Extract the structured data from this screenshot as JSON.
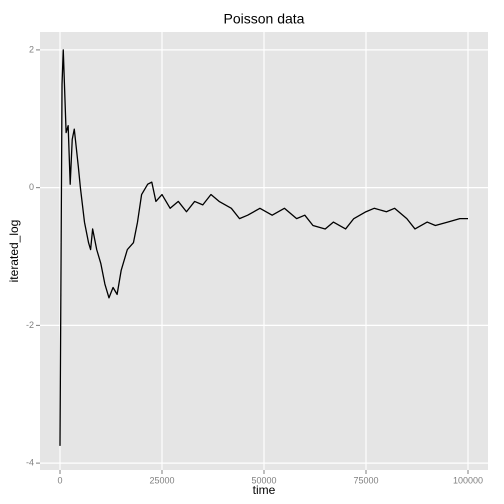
{
  "chart_data": {
    "type": "line",
    "title": "Poisson data",
    "x_label": "time",
    "y_label": "iterated_log",
    "series": [
      {
        "name": "iterated_log",
        "color": "#000000",
        "x": [
          0,
          500,
          800,
          1500,
          2000,
          2500,
          3000,
          3500,
          4500,
          5000,
          6000,
          7000,
          7500,
          8000,
          9000,
          10000,
          11000,
          12000,
          13000,
          14000,
          15000,
          16500,
          18000,
          19000,
          20000,
          21500,
          22500,
          23500,
          25000,
          27000,
          29000,
          31000,
          33000,
          35000,
          37000,
          39000,
          42000,
          44000,
          46000,
          49000,
          52000,
          55000,
          58000,
          60000,
          62000,
          65000,
          67000,
          70000,
          72000,
          75000,
          77000,
          80000,
          82000,
          85000,
          87000,
          90000,
          92000,
          95000,
          98000,
          100000
        ],
        "values": [
          -3.75,
          1.5,
          2.0,
          0.8,
          0.9,
          0.05,
          0.7,
          0.85,
          0.3,
          0.0,
          -0.5,
          -0.8,
          -0.9,
          -0.6,
          -0.9,
          -1.1,
          -1.4,
          -1.6,
          -1.45,
          -1.55,
          -1.2,
          -0.9,
          -0.8,
          -0.5,
          -0.1,
          0.05,
          0.08,
          -0.2,
          -0.1,
          -0.3,
          -0.2,
          -0.35,
          -0.2,
          -0.25,
          -0.1,
          -0.2,
          -0.3,
          -0.45,
          -0.4,
          -0.3,
          -0.4,
          -0.3,
          -0.45,
          -0.4,
          -0.55,
          -0.6,
          -0.5,
          -0.6,
          -0.45,
          -0.35,
          -0.3,
          -0.35,
          -0.3,
          -0.45,
          -0.6,
          -0.5,
          -0.55,
          -0.5,
          -0.45,
          -0.45
        ]
      }
    ],
    "xlim": [
      -4900,
      104900
    ],
    "xticks": [
      0,
      25000,
      50000,
      75000,
      100000
    ],
    "ylim": [
      -4.1,
      2.26
    ],
    "yticks": [
      -4,
      -2,
      0,
      2
    ],
    "grid": true
  }
}
